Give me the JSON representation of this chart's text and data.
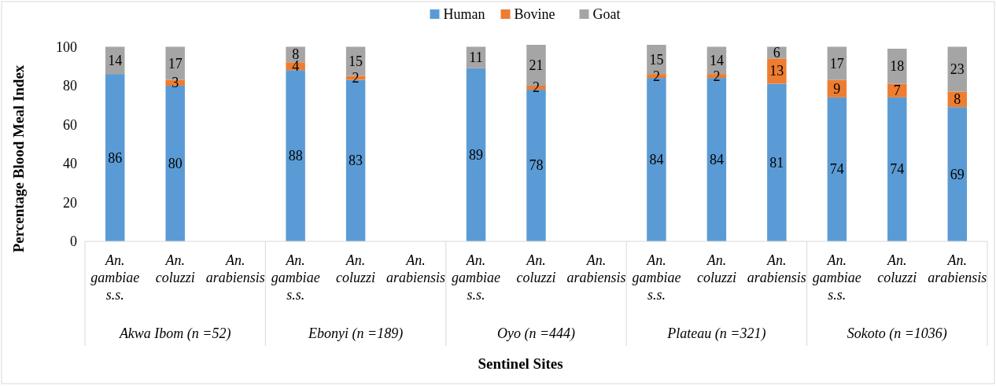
{
  "chart_data": {
    "type": "bar",
    "stacked": true,
    "ylabel": "Percentage Blood Meal Index",
    "xlabel": "Sentinel Sites",
    "categories": [
      "An. gambiae s.s.",
      "An. coluzzi",
      "An. arabiensis",
      "An. gambiae s.s.",
      "An. coluzzi",
      "An. arabiensis",
      "An. gambiae s.s.",
      "An. coluzzi",
      "An. arabiensis",
      "An. gambiae s.s.",
      "An. coluzzi",
      "An. arabiensis",
      "An. gambiae s.s.",
      "An. coluzzi",
      "An. arabiensis"
    ],
    "annotations": [
      "Akwa Ibom (n =52)",
      "Ebonyi (n =189)",
      "Oyo (n =444)",
      "Plateau (n =321)",
      "Sokoto (n =1036)"
    ],
    "series": [
      {
        "name": "Human",
        "color": "#5b9bd5",
        "values": [
          86,
          80,
          null,
          88,
          83,
          null,
          89,
          78,
          null,
          84,
          84,
          81,
          74,
          74,
          69
        ]
      },
      {
        "name": "Bovine",
        "color": "#ed7d31",
        "values": [
          null,
          3,
          null,
          4,
          2,
          null,
          null,
          2,
          null,
          2,
          2,
          13,
          9,
          7,
          8
        ]
      },
      {
        "name": "Goat",
        "color": "#a5a5a5",
        "values": [
          14,
          17,
          null,
          8,
          15,
          null,
          11,
          21,
          null,
          15,
          14,
          6,
          17,
          18,
          23
        ]
      }
    ],
    "ylim": [
      0,
      101
    ],
    "yticks": [
      0,
      20,
      40,
      60,
      80,
      100
    ],
    "legend": "top",
    "data_labels": true
  }
}
